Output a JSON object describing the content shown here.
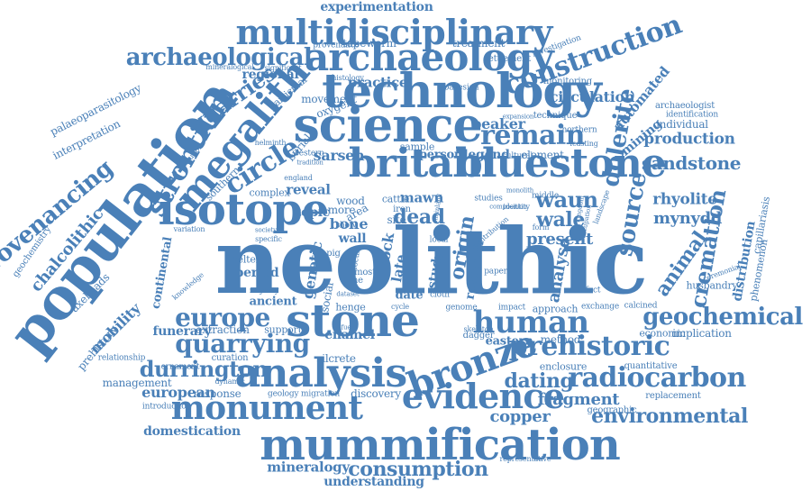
{
  "cloud": {
    "color": "#4a80b8",
    "words": [
      {
        "text": "experimentation"
      },
      {
        "text": "multidisciplinary"
      },
      {
        "text": "archaeological"
      },
      {
        "text": "archaeology"
      },
      {
        "text": "technology"
      },
      {
        "text": "construction"
      },
      {
        "text": "palaeoparasitology"
      },
      {
        "text": "interpretation"
      },
      {
        "text": "population"
      },
      {
        "text": "strontium"
      },
      {
        "text": "megalith"
      },
      {
        "text": "science"
      },
      {
        "text": "remain"
      },
      {
        "text": "britain"
      },
      {
        "text": "bluestone"
      },
      {
        "text": "provenancing"
      },
      {
        "text": "chalcolithic"
      },
      {
        "text": "circle"
      },
      {
        "text": "isotope"
      },
      {
        "text": "neolithic"
      },
      {
        "text": "dolerite"
      },
      {
        "text": "mining"
      },
      {
        "text": "production"
      },
      {
        "text": "sandstone"
      },
      {
        "text": "rhyolite"
      },
      {
        "text": "mynydd"
      },
      {
        "text": "waun"
      },
      {
        "text": "wale"
      },
      {
        "text": "source"
      },
      {
        "text": "cremation"
      },
      {
        "text": "animal"
      },
      {
        "text": "stone"
      },
      {
        "text": "europe"
      },
      {
        "text": "human"
      },
      {
        "text": "geochemical"
      },
      {
        "text": "quarrying"
      },
      {
        "text": "prehistoric"
      },
      {
        "text": "analysis"
      },
      {
        "text": "bronze"
      },
      {
        "text": "durrington"
      },
      {
        "text": "radiocarbon"
      },
      {
        "text": "dating"
      },
      {
        "text": "monument"
      },
      {
        "text": "evidence"
      },
      {
        "text": "fragment"
      },
      {
        "text": "environmental"
      },
      {
        "text": "mummification"
      },
      {
        "text": "european"
      },
      {
        "text": "copper"
      },
      {
        "text": "domestication"
      },
      {
        "text": "mineralogy"
      },
      {
        "text": "consumption"
      },
      {
        "text": "understanding"
      },
      {
        "text": "mobility"
      },
      {
        "text": "funerary"
      },
      {
        "text": "axeheads"
      },
      {
        "text": "prehistory"
      },
      {
        "text": "management"
      },
      {
        "text": "quarries"
      },
      {
        "text": "genetic"
      },
      {
        "text": "origin"
      },
      {
        "text": "analyse"
      },
      {
        "text": "dead"
      },
      {
        "text": "present"
      },
      {
        "text": "mawn"
      },
      {
        "text": "beaker"
      },
      {
        "text": "practice"
      },
      {
        "text": "circulation"
      },
      {
        "text": "treatment"
      },
      {
        "text": "tapeworm"
      },
      {
        "text": "sarsen"
      },
      {
        "text": "legend"
      },
      {
        "text": "person"
      },
      {
        "text": "burial"
      },
      {
        "text": "oxygen"
      },
      {
        "text": "movement"
      },
      {
        "text": "reveal"
      },
      {
        "text": "bone"
      },
      {
        "text": "ancient"
      },
      {
        "text": "period"
      },
      {
        "text": "enamel"
      },
      {
        "text": "extraction"
      },
      {
        "text": "provenance"
      },
      {
        "text": "settlement"
      },
      {
        "text": "investigation"
      },
      {
        "text": "automated"
      },
      {
        "text": "archaeologist"
      },
      {
        "text": "individual"
      },
      {
        "text": "identification"
      },
      {
        "text": "capillariasis"
      },
      {
        "text": "distribution"
      },
      {
        "text": "phenomenon"
      },
      {
        "text": "implication"
      },
      {
        "text": "economic"
      },
      {
        "text": "quantitative"
      },
      {
        "text": "replacement"
      },
      {
        "text": "geographic"
      },
      {
        "text": "representative"
      },
      {
        "text": "eastern"
      },
      {
        "text": "method"
      },
      {
        "text": "enclosure"
      },
      {
        "text": "response"
      },
      {
        "text": "discovery"
      },
      {
        "text": "geology migration"
      },
      {
        "text": "curation"
      },
      {
        "text": "silcrete"
      },
      {
        "text": "dynamic"
      },
      {
        "text": "introduction"
      },
      {
        "text": "relationship"
      },
      {
        "text": "ornament"
      },
      {
        "text": "support"
      },
      {
        "text": "continental"
      },
      {
        "text": "geochemistry"
      },
      {
        "text": "variation"
      },
      {
        "text": "complex"
      },
      {
        "text": "southern"
      },
      {
        "text": "regional"
      },
      {
        "text": "particular"
      },
      {
        "text": "significant"
      },
      {
        "text": "mineralogical"
      },
      {
        "text": "histology"
      },
      {
        "text": "bayesian"
      },
      {
        "text": "monitoring"
      },
      {
        "text": "technique"
      },
      {
        "text": "expansion"
      },
      {
        "text": "northern"
      },
      {
        "text": "feasting"
      },
      {
        "text": "element"
      },
      {
        "text": "cultural"
      },
      {
        "text": "sample"
      },
      {
        "text": "western"
      },
      {
        "text": "shelter"
      },
      {
        "text": "husbandry"
      },
      {
        "text": "ceremonial"
      },
      {
        "text": "exchange"
      },
      {
        "text": "calcined"
      },
      {
        "text": "approach"
      },
      {
        "text": "impact"
      },
      {
        "text": "genome"
      },
      {
        "text": "cattle"
      },
      {
        "text": "iron"
      },
      {
        "text": "site"
      },
      {
        "text": "wood"
      },
      {
        "text": "more"
      },
      {
        "text": "area"
      },
      {
        "text": "topic"
      },
      {
        "text": "wall"
      },
      {
        "text": "date"
      },
      {
        "text": "cycle"
      },
      {
        "text": "henge"
      },
      {
        "text": "study"
      },
      {
        "text": "research"
      },
      {
        "text": "great"
      },
      {
        "text": "rock"
      },
      {
        "text": "late"
      },
      {
        "text": "dagger"
      },
      {
        "text": "skeleton"
      },
      {
        "text": "middle"
      },
      {
        "text": "artefact"
      },
      {
        "text": "paper"
      },
      {
        "text": "social"
      },
      {
        "text": "cloth"
      },
      {
        "text": "local"
      },
      {
        "text": "time"
      },
      {
        "text": "focus"
      },
      {
        "text": "majority"
      },
      {
        "text": "helminth"
      },
      {
        "text": "evolution"
      },
      {
        "text": "england"
      },
      {
        "text": "studies"
      },
      {
        "text": "monolith"
      },
      {
        "text": "landscape"
      },
      {
        "text": "occupation"
      },
      {
        "text": "kingdom"
      },
      {
        "text": "form"
      },
      {
        "text": "contribution"
      },
      {
        "text": "composition"
      },
      {
        "text": "society"
      },
      {
        "text": "mainland"
      },
      {
        "text": "tradition"
      },
      {
        "text": "identity"
      },
      {
        "text": "pig"
      },
      {
        "text": "show"
      },
      {
        "text": "most"
      },
      {
        "text": "dataset"
      },
      {
        "text": "fuel"
      },
      {
        "text": "specific"
      },
      {
        "text": "knowledge"
      }
    ]
  }
}
